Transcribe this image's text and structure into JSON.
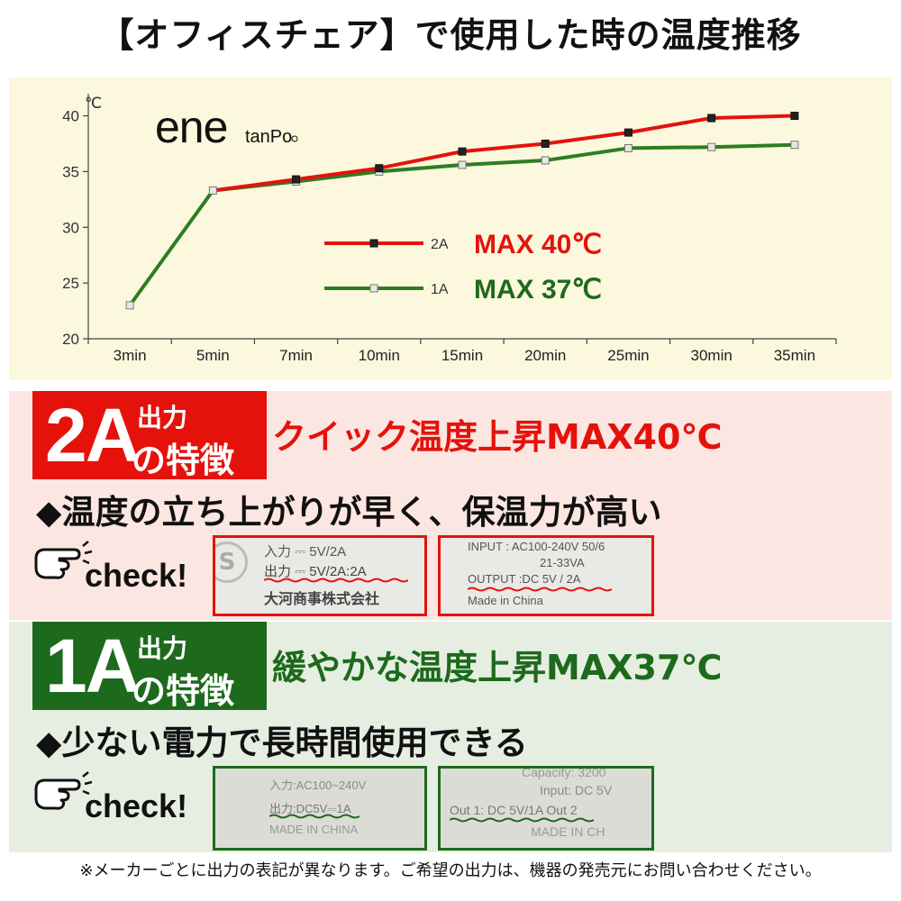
{
  "title": "【オフィスチェア】で使用した時の温度推移",
  "logo": {
    "main": "ene",
    "sub": "tanPo"
  },
  "chart_data": {
    "type": "line",
    "title": "",
    "xlabel": "",
    "ylabel": "℃",
    "categories": [
      "3min",
      "5min",
      "7min",
      "10min",
      "15min",
      "20min",
      "25min",
      "30min",
      "35min"
    ],
    "yticks": [
      20,
      25,
      30,
      35,
      40
    ],
    "ylim": [
      20,
      41.5
    ],
    "grid": false,
    "legend_position": "center-right",
    "series": [
      {
        "name": "2A",
        "color": "#e5120c",
        "marker": "square-dark",
        "values": [
          null,
          33.3,
          34.3,
          35.3,
          36.8,
          37.5,
          38.5,
          39.8,
          40.0
        ]
      },
      {
        "name": "1A",
        "color": "#2e7d22",
        "marker": "square-light",
        "values": [
          23.0,
          33.3,
          34.1,
          35.0,
          35.6,
          36.0,
          37.1,
          37.2,
          37.4
        ]
      }
    ],
    "annotations": [
      {
        "series": "2A",
        "text": "MAX 40℃",
        "color": "#e5120c"
      },
      {
        "series": "1A",
        "text": "MAX 37℃",
        "color": "#1d6a1c"
      }
    ]
  },
  "section_2a": {
    "badge_main": "2A",
    "badge_out": "出力",
    "badge_feat": "の特徴",
    "headline": "クイック温度上昇MAX40℃",
    "bullet": "◆温度の立ち上がりが早く、保温力が高い",
    "check": "check!",
    "label1": {
      "lines": [
        "入力 ⎓ 5V/2A",
        "出力 ⎓ 5V/2A:2A",
        "大河商事株式会社"
      ],
      "logo_char": "S"
    },
    "label2": {
      "lines": [
        "INPUT   : AC100-240V 50/6",
        "21-33VA",
        "OUTPUT :DC 5V / 2A",
        "Made in China"
      ]
    }
  },
  "section_1a": {
    "badge_main": "1A",
    "badge_out": "出力",
    "badge_feat": "の特徴",
    "headline": "緩やかな温度上昇MAX37℃",
    "bullet": "◆少ない電力で長時間使用できる",
    "check": "check!",
    "label1": {
      "lines": [
        "入力:AC100~240V",
        "出力:DC5V⎓1A",
        "MADE IN CHINA"
      ]
    },
    "label2": {
      "lines": [
        "Capacity: 3200",
        "Input: DC 5V",
        "Out 1: DC 5V/1A  Out 2",
        "MADE IN CH"
      ]
    }
  },
  "footnote": "※メーカーごとに出力の表記が異なります。ご希望の出力は、機器の発売元にお問い合わせください。"
}
